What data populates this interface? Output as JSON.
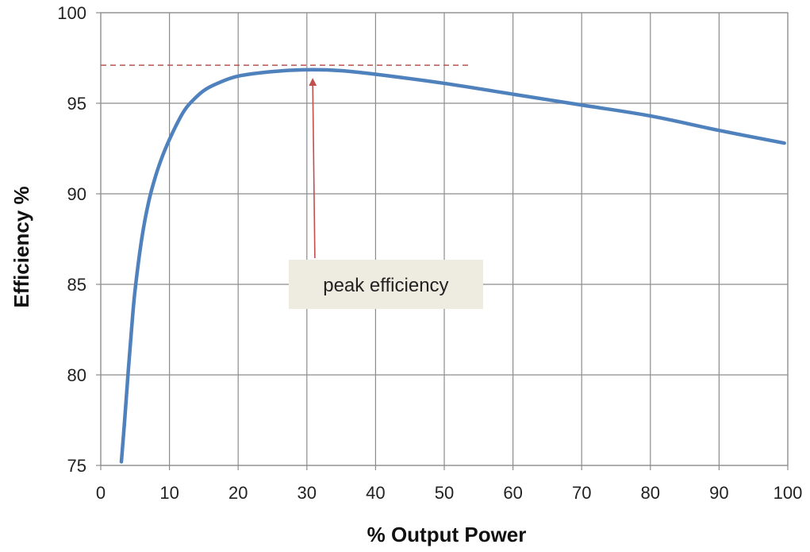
{
  "chart_data": {
    "type": "line",
    "title": "",
    "xlabel": "% Output Power",
    "ylabel": "Efficiency %",
    "xlim": [
      0,
      100
    ],
    "ylim": [
      75,
      100
    ],
    "x_ticks": [
      "0",
      "10",
      "20",
      "30",
      "40",
      "50",
      "60",
      "70",
      "80",
      "90",
      "100"
    ],
    "y_ticks": [
      "75",
      "80",
      "85",
      "90",
      "95",
      "100"
    ],
    "grid": true,
    "series": [
      {
        "color": "#4f81bd",
        "x": [
          3,
          3.5,
          4,
          4.5,
          5,
          6,
          7,
          8,
          9,
          10,
          11,
          12,
          13,
          15,
          17,
          20,
          25,
          30,
          35,
          40,
          50,
          60,
          70,
          80,
          90,
          99.5
        ],
        "y": [
          75.2,
          77.6,
          80.2,
          82.6,
          84.7,
          87.6,
          89.6,
          91.0,
          92.1,
          93.0,
          93.8,
          94.5,
          95.0,
          95.7,
          96.1,
          96.5,
          96.75,
          96.85,
          96.8,
          96.6,
          96.1,
          95.5,
          94.9,
          94.3,
          93.5,
          92.8
        ]
      }
    ],
    "reference_line": {
      "y": 97.1,
      "x_start": 0,
      "x_end": 54,
      "color": "#c0504d",
      "style": "dashed"
    },
    "annotation": {
      "text": "peak efficiency",
      "target_x": 30.5,
      "target_y": 96.75,
      "box_x": 41.5,
      "box_y": 85,
      "arrow_color": "#c0504d",
      "box_color": "#eeece1"
    }
  }
}
